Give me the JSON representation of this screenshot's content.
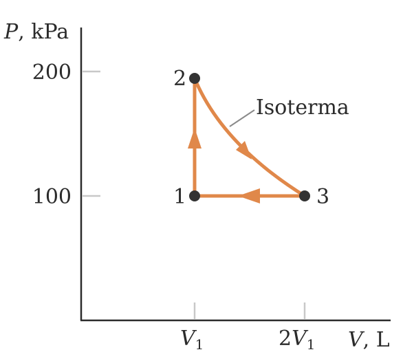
{
  "axes": {
    "y_label_var": "P",
    "y_label_unit": ", kPa",
    "x_label_var": "V",
    "x_label_unit": ", L",
    "y_ticks": [
      "200",
      "100"
    ],
    "x_ticks": [
      {
        "prefix": "",
        "var": "V",
        "sub": "1"
      },
      {
        "prefix": "2",
        "var": "V",
        "sub": "1"
      }
    ]
  },
  "points": [
    {
      "label": "1",
      "V": "V1",
      "P": 100
    },
    {
      "label": "2",
      "V": "V1",
      "P": 200
    },
    {
      "label": "3",
      "V": "2V1",
      "P": 100
    }
  ],
  "annotation": "Isoterma",
  "colors": {
    "path": "#E0884A",
    "axis": "#2b2b2b",
    "tick": "#c8c8c8",
    "point": "#333333",
    "leader": "#8a8a8a"
  }
}
